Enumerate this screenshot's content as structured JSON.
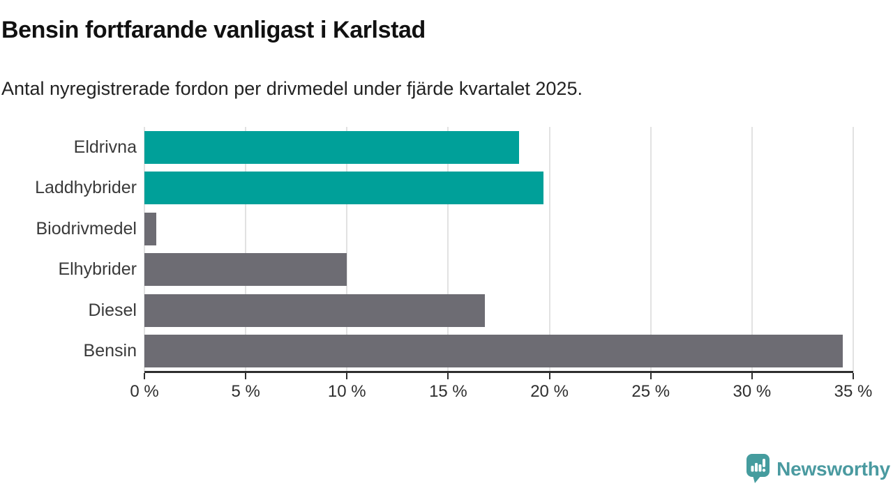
{
  "header": {
    "title": "Bensin fortfarande vanligast i Karlstad",
    "subtitle": "Antal nyregistrerade fordon per drivmedel under fjärde kvartalet 2025."
  },
  "chart_data": {
    "type": "bar",
    "orientation": "horizontal",
    "title": "Bensin fortfarande vanligast i Karlstad",
    "subtitle": "Antal nyregistrerade fordon per drivmedel under fjärde kvartalet 2025.",
    "categories": [
      "Eldrivna",
      "Laddhybrider",
      "Biodrivmedel",
      "Elhybrider",
      "Diesel",
      "Bensin"
    ],
    "values": [
      18.5,
      19.7,
      0.6,
      10.0,
      16.8,
      34.5
    ],
    "unit": "%",
    "bar_colors": [
      "#00a099",
      "#00a099",
      "#6d6c73",
      "#6d6c73",
      "#6d6c73",
      "#6d6c73"
    ],
    "xlim": [
      0,
      35
    ],
    "x_tick_values": [
      0,
      5,
      10,
      15,
      20,
      25,
      30,
      35
    ],
    "x_tick_labels": [
      "0 %",
      "5 %",
      "10 %",
      "15 %",
      "20 %",
      "25 %",
      "30 %",
      "35 %"
    ],
    "grid": "vertical-gridlines-on",
    "legend": "none"
  },
  "colors": {
    "accent_teal": "#00a099",
    "bar_gray": "#6d6c73",
    "gridline": "#e2e2e2",
    "axis": "#2e2e2e",
    "brand_teal": "#4a9aa0"
  },
  "branding": {
    "logo_text": "Newsworthy",
    "logo_icon": "bar-chart-speech-bubble-icon"
  }
}
